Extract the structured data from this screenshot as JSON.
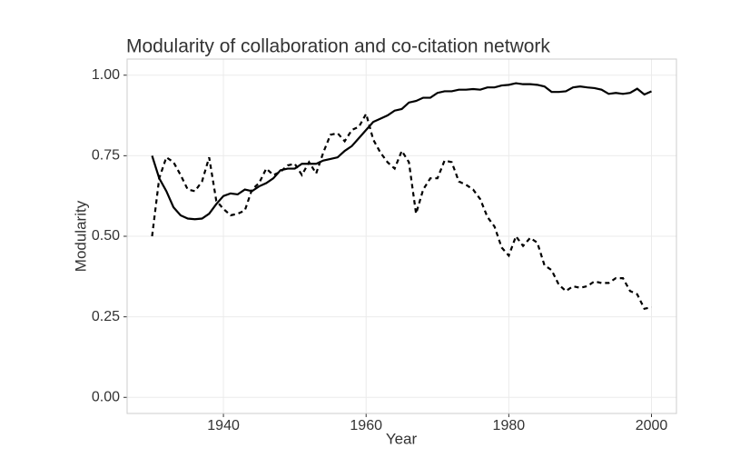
{
  "chart_data": {
    "type": "line",
    "title": "Modularity of collaboration and co-citation network",
    "x_label": "Year",
    "y_label": "Modularity",
    "x": [
      1930,
      1931,
      1932,
      1933,
      1934,
      1935,
      1936,
      1937,
      1938,
      1939,
      1940,
      1941,
      1942,
      1943,
      1944,
      1945,
      1946,
      1947,
      1948,
      1949,
      1950,
      1951,
      1952,
      1953,
      1954,
      1955,
      1956,
      1957,
      1958,
      1959,
      1960,
      1961,
      1962,
      1963,
      1964,
      1965,
      1966,
      1967,
      1968,
      1969,
      1970,
      1971,
      1972,
      1973,
      1974,
      1975,
      1976,
      1977,
      1978,
      1979,
      1980,
      1981,
      1982,
      1983,
      1984,
      1985,
      1986,
      1987,
      1988,
      1989,
      1990,
      1991,
      1992,
      1993,
      1994,
      1995,
      1996,
      1997,
      1998,
      1999,
      2000
    ],
    "series": [
      {
        "color": "#000000",
        "dash": false,
        "values": [
          0.75,
          0.68,
          0.64,
          0.59,
          0.565,
          0.555,
          0.553,
          0.555,
          0.57,
          0.6,
          0.625,
          0.633,
          0.63,
          0.645,
          0.64,
          0.655,
          0.665,
          0.68,
          0.705,
          0.71,
          0.71,
          0.725,
          0.725,
          0.725,
          0.735,
          0.74,
          0.745,
          0.765,
          0.78,
          0.805,
          0.83,
          0.855,
          0.865,
          0.875,
          0.89,
          0.895,
          0.915,
          0.92,
          0.93,
          0.93,
          0.945,
          0.95,
          0.95,
          0.955,
          0.955,
          0.957,
          0.955,
          0.962,
          0.962,
          0.968,
          0.97,
          0.975,
          0.972,
          0.972,
          0.97,
          0.965,
          0.948,
          0.948,
          0.95,
          0.962,
          0.965,
          0.962,
          0.96,
          0.955,
          0.942,
          0.945,
          0.942,
          0.945,
          0.958,
          0.94,
          0.95
        ]
      },
      {
        "color": "#000000",
        "dash": true,
        "values": [
          0.5,
          0.68,
          0.745,
          0.73,
          0.69,
          0.645,
          0.64,
          0.67,
          0.745,
          0.61,
          0.585,
          0.565,
          0.57,
          0.58,
          0.645,
          0.665,
          0.71,
          0.69,
          0.7,
          0.72,
          0.725,
          0.69,
          0.73,
          0.695,
          0.76,
          0.815,
          0.82,
          0.795,
          0.83,
          0.84,
          0.88,
          0.8,
          0.76,
          0.73,
          0.71,
          0.765,
          0.73,
          0.57,
          0.645,
          0.68,
          0.68,
          0.735,
          0.73,
          0.67,
          0.66,
          0.645,
          0.615,
          0.56,
          0.53,
          0.465,
          0.44,
          0.5,
          0.47,
          0.495,
          0.48,
          0.41,
          0.395,
          0.35,
          0.33,
          0.345,
          0.34,
          0.345,
          0.36,
          0.355,
          0.355,
          0.37,
          0.37,
          0.33,
          0.32,
          0.275,
          0.28
        ]
      }
    ],
    "xlim": [
      1926.5,
      2003.5
    ],
    "xticks": [
      1940,
      1960,
      1980,
      2000
    ],
    "ylim": [
      -0.05,
      1.05
    ],
    "yticks": [
      {
        "value": 0,
        "label": "0.00"
      },
      {
        "value": 0.25,
        "label": "0.25"
      },
      {
        "value": 0.5,
        "label": "0.50"
      },
      {
        "value": 0.75,
        "label": "0.75"
      },
      {
        "value": 1,
        "label": "1.00"
      }
    ],
    "grid": true
  }
}
